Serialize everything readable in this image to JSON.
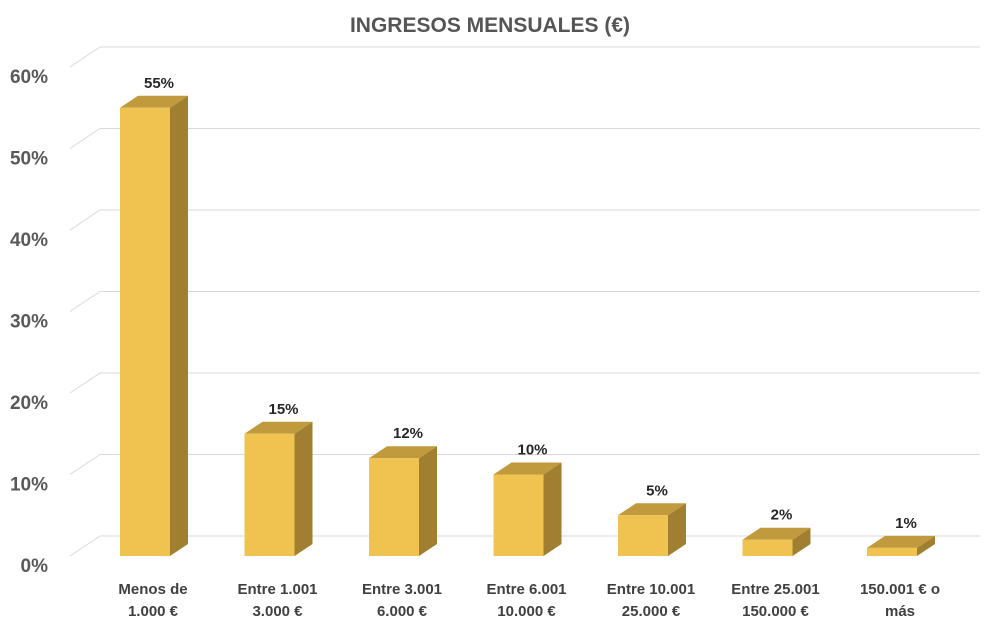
{
  "chart_data": {
    "type": "bar",
    "title": "INGRESOS MENSUALES (€)",
    "xlabel": "",
    "ylabel": "",
    "ylim": [
      0,
      60
    ],
    "yticks": [
      0,
      10,
      20,
      30,
      40,
      50,
      60
    ],
    "ytick_labels": [
      "0%",
      "10%",
      "20%",
      "30%",
      "40%",
      "50%",
      "60%"
    ],
    "categories": [
      [
        "Menos de",
        "1.000 €"
      ],
      [
        "Entre 1.001",
        "3.000 €"
      ],
      [
        "Entre 3.001",
        "6.000 €"
      ],
      [
        "Entre 6.001",
        "10.000 €"
      ],
      [
        "Entre 10.001",
        "25.000 €"
      ],
      [
        "Entre 25.001",
        "150.000 €"
      ],
      [
        "150.001 € o",
        "más"
      ]
    ],
    "values": [
      55,
      15,
      12,
      10,
      5,
      2,
      1
    ],
    "value_labels": [
      "55%",
      "15%",
      "12%",
      "10%",
      "5%",
      "2%",
      "1%"
    ],
    "grid": true,
    "legend": "none",
    "colors": {
      "bar_front": "#F0C350",
      "bar_top": "#C09A3C",
      "bar_side": "#A08030",
      "grid": "#D9D9D9"
    }
  }
}
